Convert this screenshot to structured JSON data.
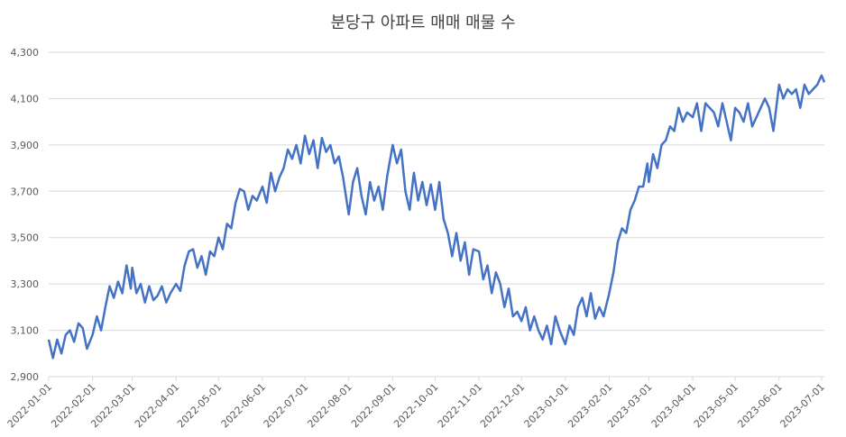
{
  "chart_data": {
    "type": "line",
    "title": "분당구 아파트 매매 매물 수",
    "x": [
      "2022-01-01",
      "2022-01-04",
      "2022-01-07",
      "2022-01-10",
      "2022-01-13",
      "2022-01-16",
      "2022-01-19",
      "2022-01-22",
      "2022-01-25",
      "2022-01-28",
      "2022-02-01",
      "2022-02-04",
      "2022-02-07",
      "2022-02-10",
      "2022-02-13",
      "2022-02-16",
      "2022-02-19",
      "2022-02-22",
      "2022-02-25",
      "2022-02-28",
      "2022-03-01",
      "2022-03-04",
      "2022-03-07",
      "2022-03-10",
      "2022-03-13",
      "2022-03-16",
      "2022-03-19",
      "2022-03-22",
      "2022-03-25",
      "2022-03-28",
      "2022-04-01",
      "2022-04-04",
      "2022-04-07",
      "2022-04-10",
      "2022-04-13",
      "2022-04-16",
      "2022-04-19",
      "2022-04-22",
      "2022-04-25",
      "2022-04-28",
      "2022-05-01",
      "2022-05-04",
      "2022-05-07",
      "2022-05-10",
      "2022-05-13",
      "2022-05-16",
      "2022-05-19",
      "2022-05-22",
      "2022-05-25",
      "2022-05-28",
      "2022-06-01",
      "2022-06-04",
      "2022-06-07",
      "2022-06-10",
      "2022-06-13",
      "2022-06-16",
      "2022-06-19",
      "2022-06-22",
      "2022-06-25",
      "2022-06-28",
      "2022-07-01",
      "2022-07-04",
      "2022-07-07",
      "2022-07-10",
      "2022-07-13",
      "2022-07-16",
      "2022-07-19",
      "2022-07-22",
      "2022-07-25",
      "2022-07-28",
      "2022-08-01",
      "2022-08-04",
      "2022-08-07",
      "2022-08-10",
      "2022-08-13",
      "2022-08-16",
      "2022-08-19",
      "2022-08-22",
      "2022-08-25",
      "2022-08-28",
      "2022-09-01",
      "2022-09-04",
      "2022-09-07",
      "2022-09-10",
      "2022-09-13",
      "2022-09-16",
      "2022-09-19",
      "2022-09-22",
      "2022-09-25",
      "2022-09-28",
      "2022-10-01",
      "2022-10-04",
      "2022-10-07",
      "2022-10-10",
      "2022-10-13",
      "2022-10-16",
      "2022-10-19",
      "2022-10-22",
      "2022-10-25",
      "2022-10-28",
      "2022-11-01",
      "2022-11-04",
      "2022-11-07",
      "2022-11-10",
      "2022-11-13",
      "2022-11-16",
      "2022-11-19",
      "2022-11-22",
      "2022-11-25",
      "2022-11-28",
      "2022-12-01",
      "2022-12-04",
      "2022-12-07",
      "2022-12-10",
      "2022-12-13",
      "2022-12-16",
      "2022-12-19",
      "2022-12-22",
      "2022-12-25",
      "2022-12-28",
      "2023-01-01",
      "2023-01-04",
      "2023-01-07",
      "2023-01-10",
      "2023-01-13",
      "2023-01-16",
      "2023-01-19",
      "2023-01-22",
      "2023-01-25",
      "2023-01-28",
      "2023-02-01",
      "2023-02-04",
      "2023-02-07",
      "2023-02-10",
      "2023-02-13",
      "2023-02-16",
      "2023-02-19",
      "2023-02-22",
      "2023-02-25",
      "2023-02-28",
      "2023-03-01",
      "2023-03-04",
      "2023-03-07",
      "2023-03-10",
      "2023-03-13",
      "2023-03-16",
      "2023-03-19",
      "2023-03-22",
      "2023-03-25",
      "2023-03-28",
      "2023-04-01",
      "2023-04-04",
      "2023-04-07",
      "2023-04-10",
      "2023-04-13",
      "2023-04-16",
      "2023-04-19",
      "2023-04-22",
      "2023-04-25",
      "2023-04-28",
      "2023-05-01",
      "2023-05-04",
      "2023-05-07",
      "2023-05-10",
      "2023-05-13",
      "2023-05-16",
      "2023-05-19",
      "2023-05-22",
      "2023-05-25",
      "2023-05-28",
      "2023-06-01",
      "2023-06-04",
      "2023-06-07",
      "2023-06-10",
      "2023-06-13",
      "2023-06-16",
      "2023-06-19",
      "2023-06-22",
      "2023-06-25",
      "2023-06-28",
      "2023-07-01",
      "2023-07-03"
    ],
    "series": [
      {
        "color": "#4472c4",
        "values": [
          3060,
          2980,
          3060,
          3000,
          3080,
          3100,
          3050,
          3130,
          3110,
          3020,
          3080,
          3160,
          3100,
          3200,
          3290,
          3240,
          3310,
          3260,
          3380,
          3280,
          3370,
          3260,
          3300,
          3220,
          3290,
          3230,
          3250,
          3290,
          3220,
          3260,
          3300,
          3270,
          3380,
          3440,
          3450,
          3370,
          3420,
          3340,
          3440,
          3420,
          3500,
          3450,
          3560,
          3540,
          3650,
          3710,
          3700,
          3620,
          3680,
          3660,
          3720,
          3650,
          3780,
          3700,
          3760,
          3800,
          3880,
          3840,
          3900,
          3820,
          3940,
          3860,
          3920,
          3800,
          3930,
          3870,
          3900,
          3820,
          3850,
          3760,
          3600,
          3740,
          3800,
          3680,
          3600,
          3740,
          3660,
          3720,
          3620,
          3760,
          3900,
          3820,
          3880,
          3700,
          3620,
          3780,
          3660,
          3740,
          3640,
          3730,
          3620,
          3740,
          3580,
          3520,
          3420,
          3520,
          3400,
          3480,
          3340,
          3450,
          3440,
          3320,
          3380,
          3260,
          3350,
          3300,
          3200,
          3280,
          3160,
          3180,
          3140,
          3200,
          3100,
          3160,
          3100,
          3060,
          3120,
          3040,
          3160,
          3100,
          3040,
          3120,
          3080,
          3200,
          3240,
          3160,
          3260,
          3150,
          3200,
          3160,
          3260,
          3350,
          3480,
          3540,
          3520,
          3620,
          3660,
          3720,
          3720,
          3820,
          3740,
          3860,
          3800,
          3900,
          3920,
          3980,
          3960,
          4060,
          4000,
          4040,
          4020,
          4080,
          3960,
          4080,
          4060,
          4040,
          3980,
          4080,
          4000,
          3920,
          4060,
          4040,
          4000,
          4080,
          3980,
          4020,
          4060,
          4100,
          4060,
          3960,
          4160,
          4100,
          4140,
          4120,
          4140,
          4060,
          4160,
          4120,
          4140,
          4160,
          4200,
          4170
        ]
      }
    ],
    "xlim": [
      "2022-01-01",
      "2023-07-03"
    ],
    "xticks": [
      "2022-01-01",
      "2022-02-01",
      "2022-03-01",
      "2022-04-01",
      "2022-05-01",
      "2022-06-01",
      "2022-07-01",
      "2022-08-01",
      "2022-09-01",
      "2022-10-01",
      "2022-11-01",
      "2022-12-01",
      "2023-01-01",
      "2023-02-01",
      "2023-03-01",
      "2023-04-01",
      "2023-05-01",
      "2023-06-01",
      "2023-07-01"
    ],
    "ylim": [
      2900,
      4300
    ],
    "yticks": [
      {
        "value": 2900,
        "label": "2,900"
      },
      {
        "value": 3100,
        "label": "3,100"
      },
      {
        "value": 3300,
        "label": "3,300"
      },
      {
        "value": 3500,
        "label": "3,500"
      },
      {
        "value": 3700,
        "label": "3,700"
      },
      {
        "value": 3900,
        "label": "3,900"
      },
      {
        "value": 4100,
        "label": "4,100"
      },
      {
        "value": 4300,
        "label": "4,300"
      }
    ],
    "grid": true
  }
}
